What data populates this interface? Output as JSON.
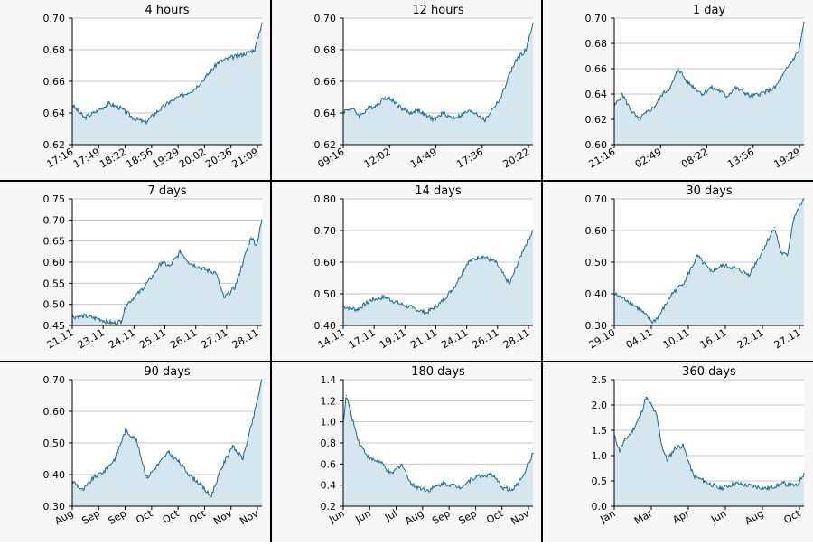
{
  "colors": {
    "line": "#1a6a8a",
    "fill": "#d6e6ee",
    "grid": "#c4c4c4",
    "panel_bg": "#f7f7f7",
    "separator": "#000000"
  },
  "chart_data": [
    {
      "type": "area",
      "title": "4 hours",
      "grid": true,
      "ylim": [
        0.62,
        0.7
      ],
      "yticks": [
        "0.62",
        "0.64",
        "0.66",
        "0.68",
        "0.70"
      ],
      "xticks": [
        "17:16",
        "17:49",
        "18:22",
        "18:56",
        "19:29",
        "20:02",
        "20:36",
        "21:09"
      ],
      "x": [
        0,
        0.25,
        0.5,
        0.75,
        1.0,
        1.25,
        1.5,
        1.75,
        2.0,
        2.25,
        2.5,
        2.75,
        3.0,
        3.25,
        3.5,
        3.75,
        3.9
      ],
      "values": [
        0.645,
        0.637,
        0.641,
        0.646,
        0.643,
        0.637,
        0.634,
        0.641,
        0.647,
        0.651,
        0.655,
        0.663,
        0.672,
        0.675,
        0.677,
        0.68,
        0.697
      ]
    },
    {
      "type": "area",
      "title": "12 hours",
      "grid": true,
      "ylim": [
        0.62,
        0.7
      ],
      "yticks": [
        "0.62",
        "0.64",
        "0.66",
        "0.68",
        "0.70"
      ],
      "xticks": [
        "09:16",
        "12:02",
        "14:49",
        "17:36",
        "20:22"
      ],
      "x": [
        0,
        0.5,
        1,
        1.5,
        2,
        2.5,
        3,
        3.5,
        4,
        4.5,
        5,
        5.5,
        6,
        6.5,
        7,
        7.5,
        8,
        8.5,
        9,
        9.5,
        10,
        10.5,
        11,
        11.4
      ],
      "values": [
        0.641,
        0.643,
        0.638,
        0.643,
        0.645,
        0.65,
        0.648,
        0.643,
        0.64,
        0.642,
        0.638,
        0.636,
        0.64,
        0.637,
        0.638,
        0.641,
        0.64,
        0.635,
        0.643,
        0.65,
        0.665,
        0.675,
        0.68,
        0.697
      ]
    },
    {
      "type": "area",
      "title": "1 day",
      "grid": true,
      "ylim": [
        0.6,
        0.7
      ],
      "yticks": [
        "0.60",
        "0.62",
        "0.64",
        "0.66",
        "0.68",
        "0.70"
      ],
      "xticks": [
        "21:16",
        "02:49",
        "08:22",
        "13:56",
        "19:29"
      ],
      "x": [
        0,
        1,
        2,
        3,
        4,
        5,
        6,
        7,
        8,
        9,
        10,
        11,
        12,
        13,
        14,
        15,
        16,
        17,
        18,
        19,
        20,
        21,
        22,
        23,
        23.6
      ],
      "values": [
        0.63,
        0.64,
        0.628,
        0.62,
        0.625,
        0.63,
        0.64,
        0.645,
        0.66,
        0.65,
        0.645,
        0.64,
        0.645,
        0.643,
        0.638,
        0.645,
        0.642,
        0.638,
        0.64,
        0.642,
        0.645,
        0.655,
        0.665,
        0.675,
        0.697
      ]
    },
    {
      "type": "area",
      "title": "7 days",
      "grid": true,
      "ylim": [
        0.45,
        0.75
      ],
      "yticks": [
        "0.45",
        "0.50",
        "0.55",
        "0.60",
        "0.65",
        "0.70",
        "0.75"
      ],
      "xticks": [
        "21.11",
        "23.11",
        "24.11",
        "25.11",
        "26.11",
        "27.11",
        "28.11"
      ],
      "x": [
        0,
        0.5,
        1,
        1.5,
        1.8,
        2,
        2.5,
        3,
        3.3,
        3.6,
        4,
        4.3,
        4.6,
        5,
        5.3,
        5.6,
        6,
        6.3,
        6.6,
        6.8,
        7
      ],
      "values": [
        0.47,
        0.472,
        0.465,
        0.455,
        0.46,
        0.5,
        0.53,
        0.57,
        0.6,
        0.59,
        0.625,
        0.6,
        0.59,
        0.58,
        0.575,
        0.515,
        0.54,
        0.6,
        0.66,
        0.64,
        0.7
      ]
    },
    {
      "type": "area",
      "title": "14 days",
      "grid": true,
      "ylim": [
        0.4,
        0.8
      ],
      "yticks": [
        "0.40",
        "0.50",
        "0.60",
        "0.70",
        "0.80"
      ],
      "xticks": [
        "14.11",
        "17.11",
        "19.11",
        "21.11",
        "24.11",
        "26.11",
        "28.11"
      ],
      "x": [
        0,
        1,
        2,
        3,
        4,
        5,
        6,
        7,
        8,
        9,
        10,
        11,
        12,
        13,
        13.7
      ],
      "values": [
        0.46,
        0.45,
        0.48,
        0.49,
        0.47,
        0.455,
        0.44,
        0.47,
        0.52,
        0.6,
        0.62,
        0.6,
        0.53,
        0.64,
        0.7
      ]
    },
    {
      "type": "area",
      "title": "30 days",
      "grid": true,
      "ylim": [
        0.3,
        0.7
      ],
      "yticks": [
        "0.30",
        "0.40",
        "0.50",
        "0.60",
        "0.70"
      ],
      "xticks": [
        "29.10",
        "04.11",
        "10.11",
        "16.11",
        "22.11",
        "27.11"
      ],
      "x": [
        0,
        2,
        4,
        6,
        7,
        9,
        11,
        13,
        15,
        17,
        19,
        21,
        23,
        25,
        26,
        27,
        28,
        29.6
      ],
      "values": [
        0.4,
        0.38,
        0.35,
        0.31,
        0.33,
        0.4,
        0.44,
        0.52,
        0.47,
        0.49,
        0.48,
        0.46,
        0.53,
        0.61,
        0.53,
        0.52,
        0.64,
        0.7
      ]
    },
    {
      "type": "area",
      "title": "90 days",
      "grid": true,
      "ylim": [
        0.3,
        0.7
      ],
      "yticks": [
        "0.30",
        "0.40",
        "0.50",
        "0.60",
        "0.70"
      ],
      "xticks": [
        "Aug",
        "Sep",
        "Sep",
        "Oct",
        "Oct",
        "Oct",
        "Nov",
        "Nov"
      ],
      "x": [
        0,
        5,
        10,
        15,
        20,
        25,
        30,
        35,
        40,
        45,
        50,
        55,
        60,
        65,
        70,
        75,
        80,
        85,
        89
      ],
      "values": [
        0.38,
        0.35,
        0.39,
        0.41,
        0.45,
        0.54,
        0.51,
        0.39,
        0.43,
        0.47,
        0.44,
        0.4,
        0.37,
        0.33,
        0.42,
        0.49,
        0.45,
        0.58,
        0.7
      ]
    },
    {
      "type": "area",
      "title": "180 days",
      "grid": true,
      "ylim": [
        0.2,
        1.4
      ],
      "yticks": [
        "0.2",
        "0.4",
        "0.6",
        "0.8",
        "1.0",
        "1.2",
        "1.4"
      ],
      "xticks": [
        "Jun",
        "Jun",
        "Jul",
        "Aug",
        "Sep",
        "Sep",
        "Oct",
        "Nov"
      ],
      "x": [
        0,
        3,
        8,
        15,
        25,
        35,
        45,
        55,
        65,
        80,
        95,
        110,
        125,
        140,
        150,
        160,
        170,
        179
      ],
      "values": [
        1.0,
        1.25,
        1.05,
        0.8,
        0.65,
        0.62,
        0.5,
        0.6,
        0.4,
        0.35,
        0.42,
        0.38,
        0.48,
        0.5,
        0.38,
        0.35,
        0.5,
        0.7
      ]
    },
    {
      "type": "area",
      "title": "360 days",
      "grid": true,
      "ylim": [
        0.0,
        2.5
      ],
      "yticks": [
        "0.0",
        "0.5",
        "1.0",
        "1.5",
        "2.0",
        "2.5"
      ],
      "xticks": [
        "Jan",
        "Mar",
        "Apr",
        "Jun",
        "Aug",
        "Oct"
      ],
      "x": [
        0,
        10,
        20,
        35,
        50,
        60,
        70,
        80,
        90,
        100,
        115,
        130,
        140,
        150,
        170,
        200,
        230,
        260,
        290,
        320,
        345,
        359
      ],
      "values": [
        1.4,
        1.1,
        1.3,
        1.5,
        1.8,
        2.15,
        2.0,
        1.8,
        1.2,
        0.9,
        1.15,
        1.2,
        0.9,
        0.6,
        0.5,
        0.35,
        0.45,
        0.4,
        0.35,
        0.45,
        0.4,
        0.65
      ]
    }
  ]
}
